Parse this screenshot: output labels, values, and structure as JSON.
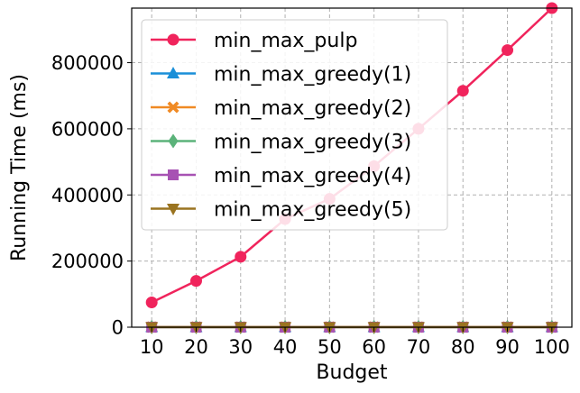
{
  "chart_data": {
    "type": "line",
    "title": "",
    "xlabel": "Budget",
    "ylabel": "Running Time (ms)",
    "x": [
      10,
      20,
      30,
      40,
      50,
      60,
      70,
      80,
      90,
      100
    ],
    "x_tick_labels": [
      "10",
      "20",
      "30",
      "40",
      "50",
      "60",
      "70",
      "80",
      "90",
      "100"
    ],
    "y_ticks": [
      0,
      200000,
      400000,
      600000,
      800000
    ],
    "y_tick_labels": [
      "0",
      "200000",
      "400000",
      "600000",
      "800000"
    ],
    "ylim": [
      0,
      965000
    ],
    "grid": true,
    "legend_position": "top-left",
    "series": [
      {
        "name": "min_max_pulp",
        "color": "#f0245c",
        "marker": "circle",
        "values": [
          75000,
          140000,
          213000,
          327000,
          388000,
          487000,
          600000,
          715000,
          838000,
          965000
        ]
      },
      {
        "name": "min_max_greedy(1)",
        "color": "#1a8fd8",
        "marker": "triangle-up",
        "values": [
          200,
          200,
          200,
          200,
          200,
          200,
          200,
          200,
          200,
          200
        ]
      },
      {
        "name": "min_max_greedy(2)",
        "color": "#f08a24",
        "marker": "x-thick",
        "values": [
          200,
          200,
          200,
          200,
          200,
          200,
          200,
          200,
          200,
          200
        ]
      },
      {
        "name": "min_max_greedy(3)",
        "color": "#5bb37a",
        "marker": "diamond",
        "values": [
          200,
          200,
          200,
          200,
          200,
          200,
          200,
          200,
          200,
          200
        ]
      },
      {
        "name": "min_max_greedy(4)",
        "color": "#a752b3",
        "marker": "square",
        "values": [
          200,
          200,
          200,
          200,
          200,
          200,
          200,
          200,
          200,
          200
        ]
      },
      {
        "name": "min_max_greedy(5)",
        "color": "#9a7420",
        "marker": "triangle-down",
        "values": [
          200,
          200,
          200,
          200,
          200,
          200,
          200,
          200,
          200,
          200
        ]
      }
    ]
  }
}
